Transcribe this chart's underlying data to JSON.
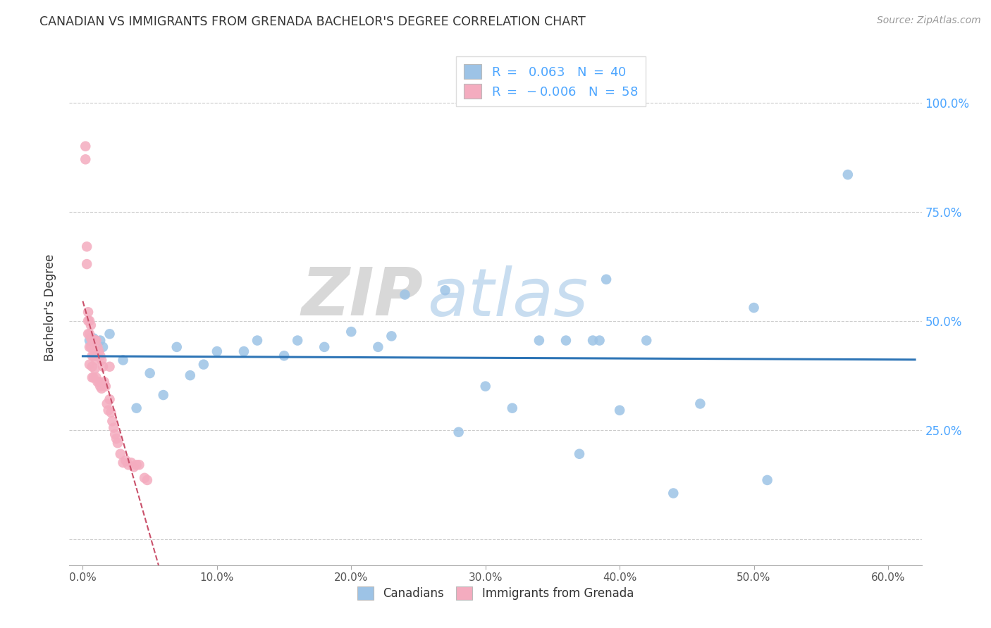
{
  "title": "CANADIAN VS IMMIGRANTS FROM GRENADA BACHELOR'S DEGREE CORRELATION CHART",
  "source": "Source: ZipAtlas.com",
  "ylabel": "Bachelor's Degree",
  "canadians_R": 0.063,
  "canadians_N": 40,
  "grenada_R": -0.006,
  "grenada_N": 58,
  "canadians_color": "#9DC3E6",
  "grenada_color": "#F4ACBF",
  "trend_canadian_color": "#2E75B6",
  "trend_grenada_color": "#C9506A",
  "watermark_zip": "ZIP",
  "watermark_atlas": "atlas",
  "canadians_x": [
    0.005,
    0.008,
    0.01,
    0.013,
    0.015,
    0.02,
    0.03,
    0.04,
    0.05,
    0.06,
    0.07,
    0.08,
    0.09,
    0.1,
    0.12,
    0.13,
    0.15,
    0.16,
    0.18,
    0.2,
    0.22,
    0.23,
    0.24,
    0.27,
    0.28,
    0.3,
    0.32,
    0.34,
    0.36,
    0.37,
    0.38,
    0.385,
    0.39,
    0.4,
    0.42,
    0.44,
    0.46,
    0.5,
    0.51,
    0.57
  ],
  "canadians_y": [
    0.455,
    0.46,
    0.42,
    0.455,
    0.44,
    0.47,
    0.41,
    0.3,
    0.38,
    0.33,
    0.44,
    0.375,
    0.4,
    0.43,
    0.43,
    0.455,
    0.42,
    0.455,
    0.44,
    0.475,
    0.44,
    0.465,
    0.56,
    0.57,
    0.245,
    0.35,
    0.3,
    0.455,
    0.455,
    0.195,
    0.455,
    0.455,
    0.595,
    0.295,
    0.455,
    0.105,
    0.31,
    0.53,
    0.135,
    0.835
  ],
  "grenada_x": [
    0.002,
    0.002,
    0.003,
    0.003,
    0.004,
    0.004,
    0.004,
    0.005,
    0.005,
    0.005,
    0.005,
    0.006,
    0.006,
    0.006,
    0.007,
    0.007,
    0.007,
    0.007,
    0.008,
    0.008,
    0.008,
    0.009,
    0.009,
    0.009,
    0.01,
    0.01,
    0.01,
    0.011,
    0.011,
    0.012,
    0.012,
    0.013,
    0.013,
    0.014,
    0.014,
    0.015,
    0.016,
    0.017,
    0.018,
    0.019,
    0.02,
    0.02,
    0.021,
    0.022,
    0.023,
    0.024,
    0.025,
    0.026,
    0.028,
    0.03,
    0.032,
    0.034,
    0.036,
    0.038,
    0.04,
    0.042,
    0.046,
    0.048
  ],
  "grenada_y": [
    0.87,
    0.9,
    0.63,
    0.67,
    0.52,
    0.5,
    0.47,
    0.5,
    0.47,
    0.44,
    0.4,
    0.49,
    0.46,
    0.44,
    0.455,
    0.42,
    0.395,
    0.37,
    0.455,
    0.42,
    0.37,
    0.455,
    0.42,
    0.39,
    0.455,
    0.41,
    0.37,
    0.44,
    0.36,
    0.43,
    0.36,
    0.42,
    0.35,
    0.41,
    0.345,
    0.395,
    0.36,
    0.35,
    0.31,
    0.295,
    0.395,
    0.32,
    0.29,
    0.27,
    0.255,
    0.24,
    0.23,
    0.22,
    0.195,
    0.175,
    0.18,
    0.17,
    0.175,
    0.165,
    0.17,
    0.17,
    0.14,
    0.135
  ],
  "xlim": [
    -0.01,
    0.625
  ],
  "ylim": [
    -0.06,
    1.12
  ],
  "xtick_vals": [
    0.0,
    0.1,
    0.2,
    0.3,
    0.4,
    0.5,
    0.6
  ],
  "xtick_labels": [
    "0.0%",
    "10.0%",
    "20.0%",
    "30.0%",
    "40.0%",
    "50.0%",
    "60.0%"
  ],
  "ytick_vals": [
    0.0,
    0.25,
    0.5,
    0.75,
    1.0
  ],
  "ytick_labels_right": [
    "",
    "25.0%",
    "50.0%",
    "75.0%",
    "100.0%"
  ]
}
